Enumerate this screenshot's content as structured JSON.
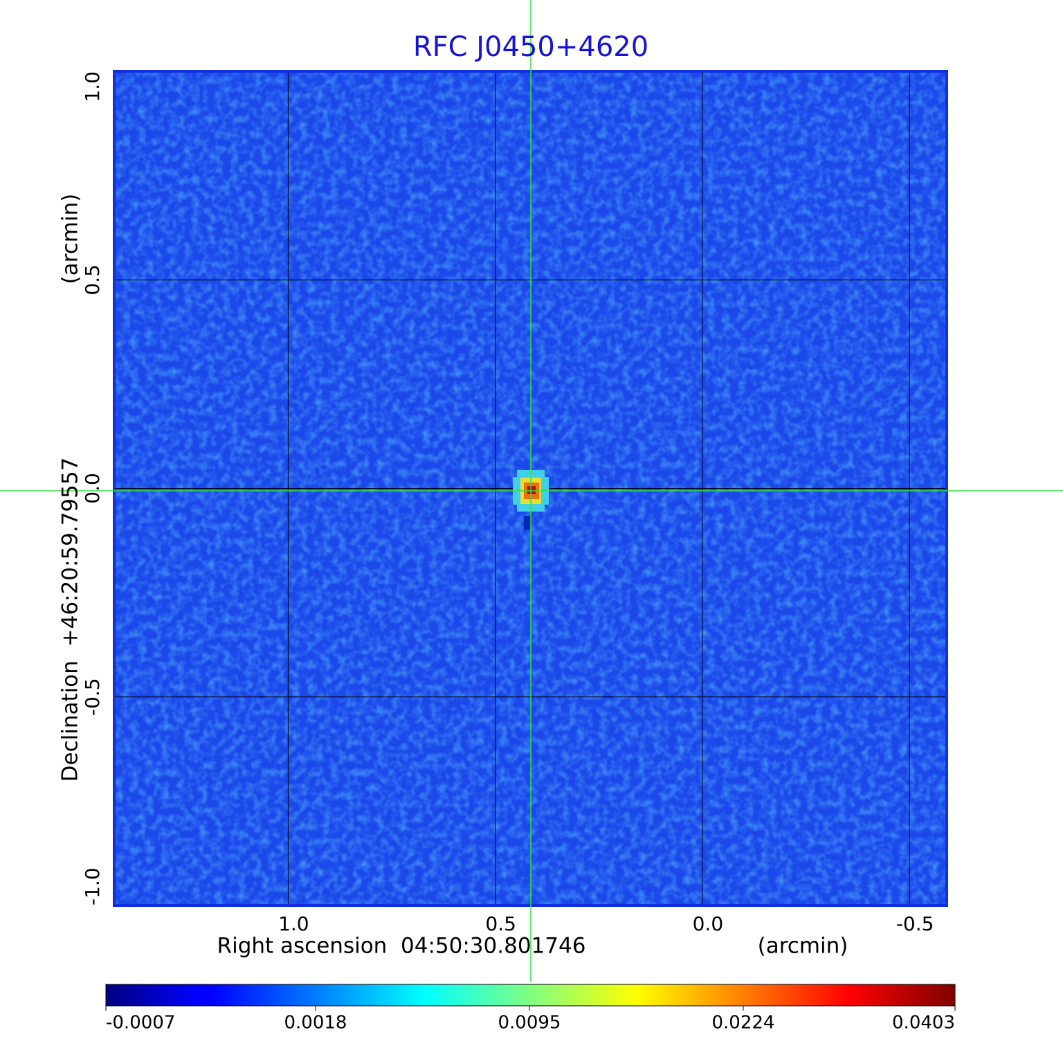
{
  "chart_data": {
    "type": "image",
    "title": "RFC J0450+4620",
    "title_color": "#1414d2",
    "x_label": "Right ascension  04:50:30.801746",
    "x_unit": "(arcmin)",
    "y_label": "Declination  +46:20:59.79557",
    "y_unit": "(arcmin)",
    "xlim": [
      1.42,
      -0.59
    ],
    "ylim": [
      -1,
      1
    ],
    "xticks": [
      {
        "value": 1,
        "label": "1.0"
      },
      {
        "value": 0.5,
        "label": "0.5"
      },
      {
        "value": 0,
        "label": "0.0"
      },
      {
        "value": -0.5,
        "label": "-0.5"
      }
    ],
    "yticks": [
      {
        "value": -1,
        "label": "-1.0"
      },
      {
        "value": -0.5,
        "label": "-0.5"
      },
      {
        "value": 0,
        "label": "0.0"
      },
      {
        "value": 0.5,
        "label": "0.5"
      },
      {
        "value": 1,
        "label": "1.0"
      }
    ],
    "grid": true,
    "colorbar": {
      "lim": [
        -0.0007,
        0.0403
      ],
      "scale": "sqrt",
      "colormap": "jet",
      "ticks": [
        -0.0007,
        0.0018,
        0.0095,
        0.0224,
        0.0403
      ]
    }
  }
}
